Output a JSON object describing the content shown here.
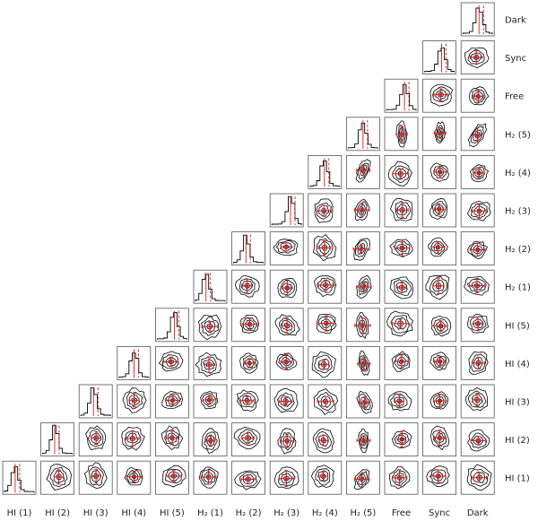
{
  "chart_data": {
    "type": "corner",
    "layout": "upper-right-triangle",
    "parameters": [
      "HI (1)",
      "HI (2)",
      "HI (3)",
      "HI (4)",
      "HI (5)",
      "H2 (1)",
      "H2 (2)",
      "H2 (3)",
      "H2 (4)",
      "H2 (5)",
      "Free",
      "Sync",
      "Dark"
    ],
    "x_labels": [
      "HI (1)",
      "HI (2)",
      "HI (3)",
      "HI (4)",
      "HI (5)",
      "H₂ (1)",
      "H₂ (2)",
      "H₂ (3)",
      "H₂ (4)",
      "H₂ (5)",
      "Free",
      "Sync",
      "Dark"
    ],
    "row_labels": [
      "Dark",
      "Sync",
      "Free",
      "H₂ (5)",
      "H₂ (4)",
      "H₂ (3)",
      "H₂ (2)",
      "H₂ (1)",
      "HI (5)",
      "HI (4)",
      "HI (3)",
      "HI (2)",
      "HI (1)"
    ],
    "diagonal": "1D marginal histograms with red dashed median and solid red reference line",
    "off_diagonal": "2D posterior contours (black) with red point and error bars",
    "colors": {
      "contour": "#000000",
      "marker": "#d62020",
      "frame": "#555555"
    },
    "grid": false,
    "legend": "none"
  }
}
